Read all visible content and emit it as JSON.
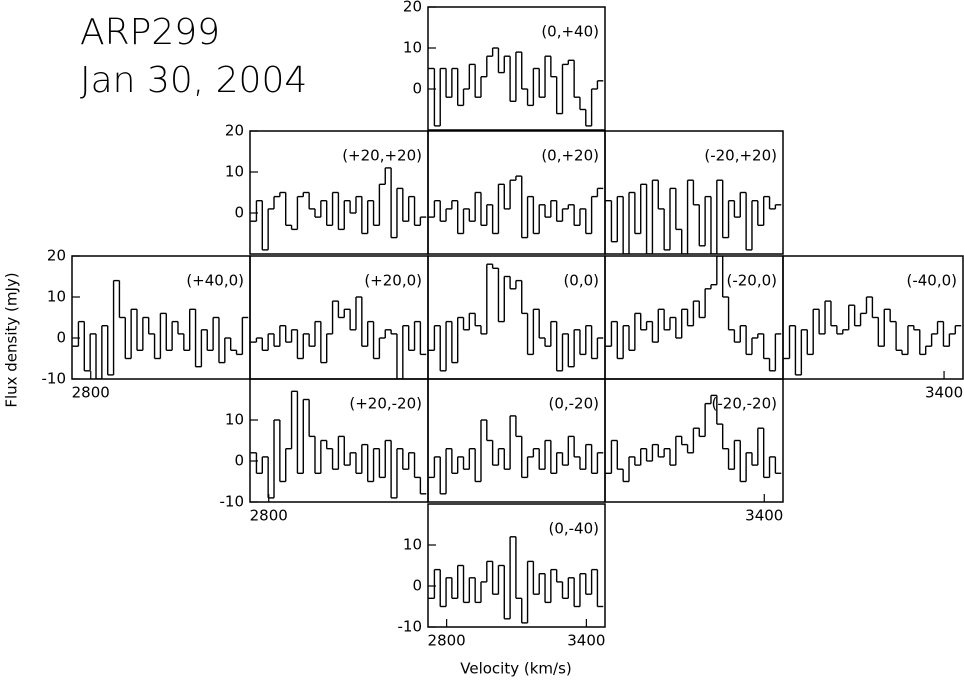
{
  "title": "ARP299",
  "subtitle": "Jan 30, 2004",
  "ylabel": "Flux density (mJy)",
  "xlabel": "Velocity (km/s)",
  "chart_data": [
    {
      "type": "step",
      "title": "(0,+40)",
      "color": "#000000",
      "xlim": [
        2720,
        3480
      ],
      "ylim": [
        -10,
        20
      ],
      "yticks": [
        0,
        10,
        20
      ],
      "x": [
        2735,
        2760,
        2785,
        2810,
        2835,
        2860,
        2885,
        2910,
        2935,
        2960,
        2985,
        3010,
        3035,
        3060,
        3085,
        3110,
        3135,
        3160,
        3185,
        3210,
        3235,
        3260,
        3285,
        3310,
        3335,
        3360,
        3385,
        3410,
        3435,
        3460
      ],
      "values": [
        5,
        -9,
        5,
        -2,
        5,
        -4,
        0,
        6,
        -2,
        3,
        8,
        10,
        4,
        8,
        -3,
        9,
        0,
        -4,
        5,
        -2,
        8,
        3,
        -6,
        6,
        7,
        -2,
        -5,
        -9,
        0,
        2
      ]
    },
    {
      "type": "step",
      "title": "(+20,+20)",
      "color": "#000000",
      "xlim": [
        2720,
        3480
      ],
      "ylim": [
        -10,
        20
      ],
      "yticks": [
        0,
        10,
        20
      ],
      "x": [
        2735,
        2760,
        2785,
        2810,
        2835,
        2860,
        2885,
        2910,
        2935,
        2960,
        2985,
        3010,
        3035,
        3060,
        3085,
        3110,
        3135,
        3160,
        3185,
        3210,
        3235,
        3260,
        3285,
        3310,
        3335,
        3360,
        3385,
        3410,
        3435,
        3460
      ],
      "values": [
        -2,
        3,
        -9,
        1,
        4,
        5,
        -3,
        -4,
        4,
        5,
        1,
        -1,
        3,
        -3,
        5,
        -4,
        3,
        0,
        4,
        -5,
        3,
        -3,
        7,
        11,
        -6,
        6,
        -2,
        4,
        -3,
        -1
      ]
    },
    {
      "type": "step",
      "title": "(0,+20)",
      "color": "#000000",
      "xlim": [
        2720,
        3480
      ],
      "ylim": [
        -10,
        20
      ],
      "x": [
        2735,
        2760,
        2785,
        2810,
        2835,
        2860,
        2885,
        2910,
        2935,
        2960,
        2985,
        3010,
        3035,
        3060,
        3085,
        3110,
        3135,
        3160,
        3185,
        3210,
        3235,
        3260,
        3285,
        3310,
        3335,
        3360,
        3385,
        3410,
        3435,
        3460
      ],
      "values": [
        -1,
        3,
        -2,
        1,
        3,
        -5,
        1,
        -2,
        5,
        -3,
        2,
        -5,
        7,
        1,
        8,
        9,
        -6,
        4,
        -5,
        2,
        -1,
        3,
        -2,
        1,
        2,
        -3,
        1,
        -5,
        4,
        6
      ]
    },
    {
      "type": "step",
      "title": "(-20,+20)",
      "color": "#000000",
      "xlim": [
        2720,
        3480
      ],
      "ylim": [
        -10,
        20
      ],
      "x": [
        2735,
        2760,
        2785,
        2810,
        2835,
        2860,
        2885,
        2910,
        2935,
        2960,
        2985,
        3010,
        3035,
        3060,
        3085,
        3110,
        3135,
        3160,
        3185,
        3210,
        3235,
        3260,
        3285,
        3310,
        3335,
        3360,
        3385,
        3410,
        3435,
        3460
      ],
      "values": [
        3,
        -7,
        4,
        -10,
        5,
        -5,
        7,
        -10,
        8,
        1,
        -9,
        6,
        -4,
        -10,
        8,
        2,
        -8,
        4,
        -10,
        8,
        -6,
        3,
        -1,
        5,
        -9,
        3,
        -3,
        4,
        1,
        2
      ]
    },
    {
      "type": "step",
      "title": "(+40,0)",
      "color": "#000000",
      "xlim": [
        2720,
        3480
      ],
      "ylim": [
        -10,
        20
      ],
      "yticks": [
        -10,
        0,
        10,
        20
      ],
      "xticks": [
        2800
      ],
      "x": [
        2735,
        2760,
        2785,
        2810,
        2835,
        2860,
        2885,
        2910,
        2935,
        2960,
        2985,
        3010,
        3035,
        3060,
        3085,
        3110,
        3135,
        3160,
        3185,
        3210,
        3235,
        3260,
        3285,
        3310,
        3335,
        3360,
        3385,
        3410,
        3435,
        3460
      ],
      "values": [
        -2,
        4,
        -8,
        1,
        -10,
        3,
        -9,
        14,
        5,
        -5,
        7,
        -3,
        5,
        1,
        -5,
        6,
        -3,
        4,
        1,
        -3,
        7,
        -7,
        2,
        -3,
        5,
        -6,
        0,
        -3,
        -4,
        5
      ]
    },
    {
      "type": "step",
      "title": "(+20,0)",
      "color": "#000000",
      "xlim": [
        2720,
        3480
      ],
      "ylim": [
        -10,
        20
      ],
      "x": [
        2735,
        2760,
        2785,
        2810,
        2835,
        2860,
        2885,
        2910,
        2935,
        2960,
        2985,
        3010,
        3035,
        3060,
        3085,
        3110,
        3135,
        3160,
        3185,
        3210,
        3235,
        3260,
        3285,
        3310,
        3335,
        3360,
        3385,
        3410,
        3435,
        3460
      ],
      "values": [
        -1,
        0,
        -3,
        1,
        -2,
        3,
        -1,
        2,
        -5,
        1,
        -2,
        4,
        -6,
        1,
        9,
        5,
        7,
        2,
        10,
        -2,
        4,
        -5,
        0,
        2,
        1,
        -10,
        3,
        -3,
        4,
        -4
      ]
    },
    {
      "type": "step",
      "title": "(0,0)",
      "color": "#000000",
      "xlim": [
        2720,
        3480
      ],
      "ylim": [
        -10,
        20
      ],
      "x": [
        2735,
        2760,
        2785,
        2810,
        2835,
        2860,
        2885,
        2910,
        2935,
        2960,
        2985,
        3010,
        3035,
        3060,
        3085,
        3110,
        3135,
        3160,
        3185,
        3210,
        3235,
        3260,
        3285,
        3310,
        3335,
        3360,
        3385,
        3410,
        3435,
        3460
      ],
      "values": [
        -3,
        3,
        -8,
        4,
        -6,
        5,
        2,
        6,
        3,
        1,
        18,
        17,
        4,
        15,
        12,
        14,
        6,
        -4,
        7,
        0,
        -2,
        4,
        -8,
        1,
        -7,
        2,
        -4,
        3,
        -5,
        0
      ]
    },
    {
      "type": "step",
      "title": "(-20,0)",
      "color": "#000000",
      "xlim": [
        2720,
        3480
      ],
      "ylim": [
        -10,
        20
      ],
      "x": [
        2735,
        2760,
        2785,
        2810,
        2835,
        2860,
        2885,
        2910,
        2935,
        2960,
        2985,
        3010,
        3035,
        3060,
        3085,
        3110,
        3135,
        3160,
        3185,
        3210,
        3235,
        3260,
        3285,
        3310,
        3335,
        3360,
        3385,
        3410,
        3435,
        3460
      ],
      "values": [
        -2,
        4,
        -5,
        3,
        -3,
        6,
        2,
        4,
        -1,
        7,
        2,
        5,
        0,
        7,
        3,
        9,
        5,
        12,
        13,
        20,
        10,
        2,
        -1,
        3,
        -4,
        0,
        1,
        -5,
        -8,
        1
      ]
    },
    {
      "type": "step",
      "title": "(-40,0)",
      "color": "#000000",
      "xlim": [
        2720,
        3480
      ],
      "ylim": [
        -10,
        20
      ],
      "xticks": [
        3400
      ],
      "x": [
        2735,
        2760,
        2785,
        2810,
        2835,
        2860,
        2885,
        2910,
        2935,
        2960,
        2985,
        3010,
        3035,
        3060,
        3085,
        3110,
        3135,
        3160,
        3185,
        3210,
        3235,
        3260,
        3285,
        3310,
        3335,
        3360,
        3385,
        3410,
        3435,
        3460
      ],
      "values": [
        -5,
        3,
        -9,
        2,
        -4,
        7,
        1,
        9,
        3,
        1,
        2,
        8,
        3,
        6,
        10,
        5,
        -2,
        7,
        4,
        -3,
        -4,
        3,
        2,
        -4,
        -2,
        1,
        4,
        -2,
        1,
        3
      ]
    },
    {
      "type": "step",
      "title": "(+20,-20)",
      "color": "#000000",
      "xlim": [
        2720,
        3480
      ],
      "ylim": [
        -10,
        20
      ],
      "yticks": [
        -10,
        0,
        10
      ],
      "xticks": [
        2800
      ],
      "x": [
        2735,
        2760,
        2785,
        2810,
        2835,
        2860,
        2885,
        2910,
        2935,
        2960,
        2985,
        3010,
        3035,
        3060,
        3085,
        3110,
        3135,
        3160,
        3185,
        3210,
        3235,
        3260,
        3285,
        3310,
        3335,
        3360,
        3385,
        3410,
        3435,
        3460
      ],
      "values": [
        2,
        -3,
        1,
        -9,
        10,
        -5,
        3,
        17,
        -3,
        15,
        6,
        -3,
        5,
        3,
        -2,
        6,
        -1,
        2,
        -3,
        4,
        -5,
        3,
        -4,
        5,
        -9,
        3,
        -2,
        2,
        -4,
        -8
      ]
    },
    {
      "type": "step",
      "title": "(0,-20)",
      "color": "#000000",
      "xlim": [
        2720,
        3480
      ],
      "ylim": [
        -10,
        20
      ],
      "x": [
        2735,
        2760,
        2785,
        2810,
        2835,
        2860,
        2885,
        2910,
        2935,
        2960,
        2985,
        3010,
        3035,
        3060,
        3085,
        3110,
        3135,
        3160,
        3185,
        3210,
        3235,
        3260,
        3285,
        3310,
        3335,
        3360,
        3385,
        3410,
        3435,
        3460
      ],
      "values": [
        -4,
        1,
        -8,
        3,
        -3,
        1,
        -2,
        3,
        -5,
        10,
        5,
        -1,
        3,
        -2,
        11,
        6,
        -4,
        1,
        3,
        -2,
        5,
        -3,
        2,
        -1,
        6,
        1,
        -2,
        4,
        -3,
        2
      ]
    },
    {
      "type": "step",
      "title": "(-20,-20)",
      "color": "#000000",
      "xlim": [
        2720,
        3480
      ],
      "ylim": [
        -10,
        20
      ],
      "xticks": [
        3400
      ],
      "x": [
        2735,
        2760,
        2785,
        2810,
        2835,
        2860,
        2885,
        2910,
        2935,
        2960,
        2985,
        3010,
        3035,
        3060,
        3085,
        3110,
        3135,
        3160,
        3185,
        3210,
        3235,
        3260,
        3285,
        3310,
        3335,
        3360,
        3385,
        3410,
        3435,
        3460
      ],
      "values": [
        -3,
        5,
        -2,
        -5,
        1,
        -1,
        3,
        0,
        4,
        1,
        3,
        -1,
        6,
        4,
        2,
        8,
        6,
        14,
        16,
        9,
        3,
        -2,
        5,
        -5,
        2,
        -1,
        8,
        -4,
        1,
        -3
      ]
    },
    {
      "type": "step",
      "title": "(0,-40)",
      "color": "#000000",
      "xlim": [
        2720,
        3480
      ],
      "ylim": [
        -10,
        20
      ],
      "yticks": [
        -10,
        0,
        10
      ],
      "xticks": [
        2800,
        3400
      ],
      "x": [
        2735,
        2760,
        2785,
        2810,
        2835,
        2860,
        2885,
        2910,
        2935,
        2960,
        2985,
        3010,
        3035,
        3060,
        3085,
        3110,
        3135,
        3160,
        3185,
        3210,
        3235,
        3260,
        3285,
        3310,
        3335,
        3360,
        3385,
        3410,
        3435,
        3460
      ],
      "values": [
        -3,
        4,
        -5,
        2,
        -3,
        5,
        -4,
        2,
        -4,
        1,
        6,
        -2,
        5,
        -8,
        12,
        -3,
        -9,
        6,
        -2,
        3,
        -4,
        4,
        1,
        -3,
        2,
        -5,
        3,
        -2,
        4,
        -5
      ]
    }
  ]
}
